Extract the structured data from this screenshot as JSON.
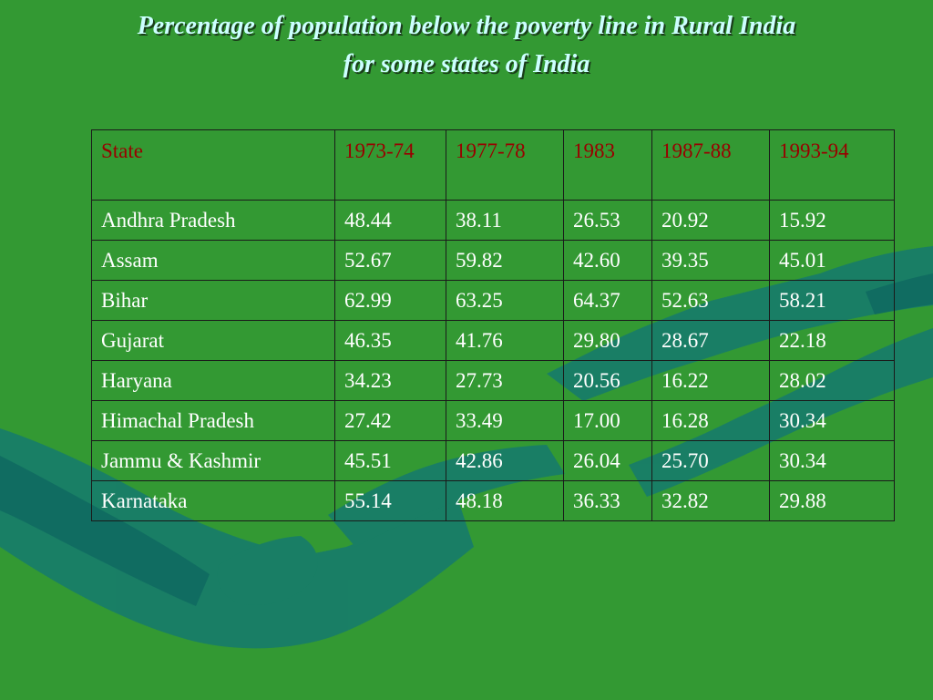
{
  "slide": {
    "title_line1": "Percentage of population below the poverty line in Rural India",
    "title_line2": "for some states of India",
    "colors": {
      "background": "#339933",
      "title": "#ccffff",
      "header_text": "#990000",
      "body_text": "#ffffff",
      "hand_art": "#157a6e"
    }
  },
  "table": {
    "headers": [
      "State",
      "1973-74",
      "1977-78",
      "1983",
      "1987-88",
      "1993-94"
    ],
    "rows": [
      [
        "Andhra  Pradesh",
        "48.44",
        "38.11",
        "26.53",
        "20.92",
        "15.92"
      ],
      [
        "Assam",
        "52.67",
        "59.82",
        "42.60",
        "39.35",
        "45.01"
      ],
      [
        "Bihar",
        "62.99",
        "63.25",
        "64.37",
        "52.63",
        "58.21"
      ],
      [
        "Gujarat",
        "46.35",
        "41.76",
        "29.80",
        "28.67",
        "22.18"
      ],
      [
        "Haryana",
        "34.23",
        "27.73",
        "20.56",
        "16.22",
        "28.02"
      ],
      [
        "Himachal Pradesh",
        "27.42",
        "33.49",
        "17.00",
        "16.28",
        "30.34"
      ],
      [
        "Jammu & Kashmir",
        "45.51",
        "42.86",
        "26.04",
        "25.70",
        "30.34"
      ],
      [
        "Karnataka",
        "55.14",
        "48.18",
        "36.33",
        "32.82",
        "29.88"
      ]
    ]
  }
}
